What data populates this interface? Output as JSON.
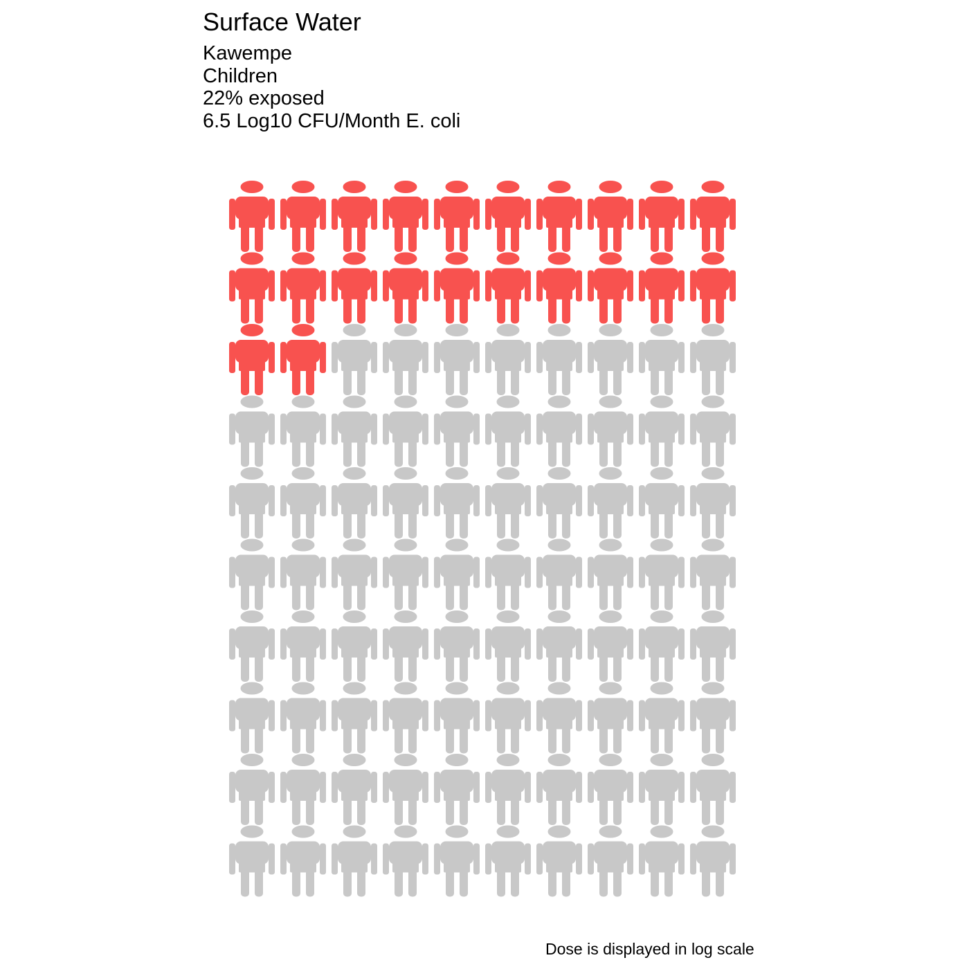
{
  "chart_data": {
    "type": "pictograph",
    "title": "Surface Water",
    "subtitle_lines": [
      "Kawempe",
      "Children",
      "22% exposed",
      "6.5 Log10 CFU/Month E. coli"
    ],
    "total_icons": 100,
    "columns": 10,
    "rows": 10,
    "exposed_count": 22,
    "unexposed_count": 78,
    "icon": "person-icon",
    "colors": {
      "exposed": "#F8524F",
      "unexposed": "#C8C8C8"
    },
    "caption": "Dose is displayed in log scale"
  }
}
